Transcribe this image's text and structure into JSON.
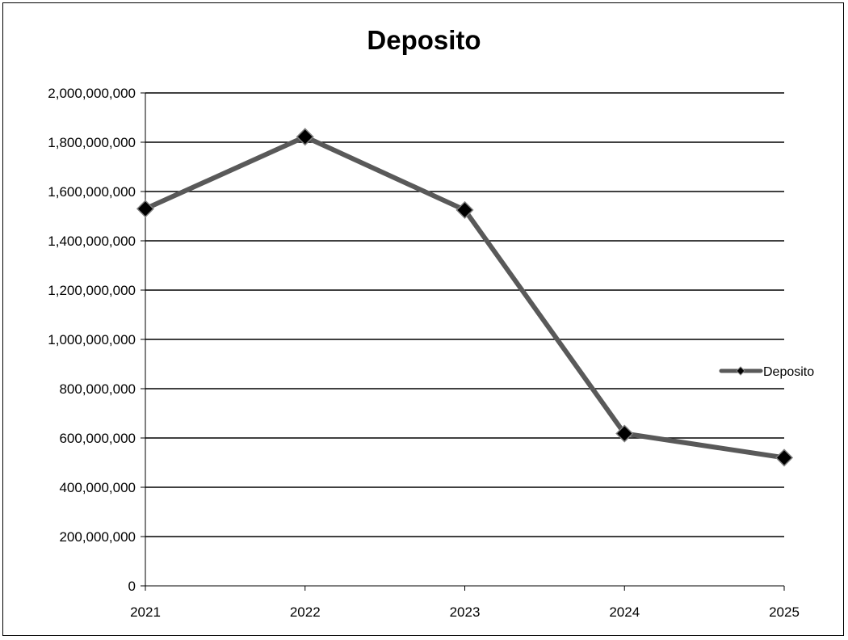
{
  "chart_data": {
    "type": "line",
    "title": "Deposito",
    "xlabel": "",
    "ylabel": "",
    "categories": [
      "2021",
      "2022",
      "2023",
      "2024",
      "2025"
    ],
    "series": [
      {
        "name": "Deposito",
        "values": [
          1530000000,
          1822000000,
          1525000000,
          618000000,
          520000000
        ],
        "color": "#595959",
        "marker": "diamond",
        "marker_color": "#000000"
      }
    ],
    "ylim": [
      0,
      2000000000
    ],
    "yticks": [
      0,
      200000000,
      400000000,
      600000000,
      800000000,
      1000000000,
      1200000000,
      1400000000,
      1600000000,
      1800000000,
      2000000000
    ],
    "ytick_labels": [
      "0",
      "200,000,000",
      "400,000,000",
      "600,000,000",
      "800,000,000",
      "1,000,000,000",
      "1,200,000,000",
      "1,400,000,000",
      "1,600,000,000",
      "1,800,000,000",
      "2,000,000,000"
    ],
    "grid": true,
    "legend": "right"
  }
}
